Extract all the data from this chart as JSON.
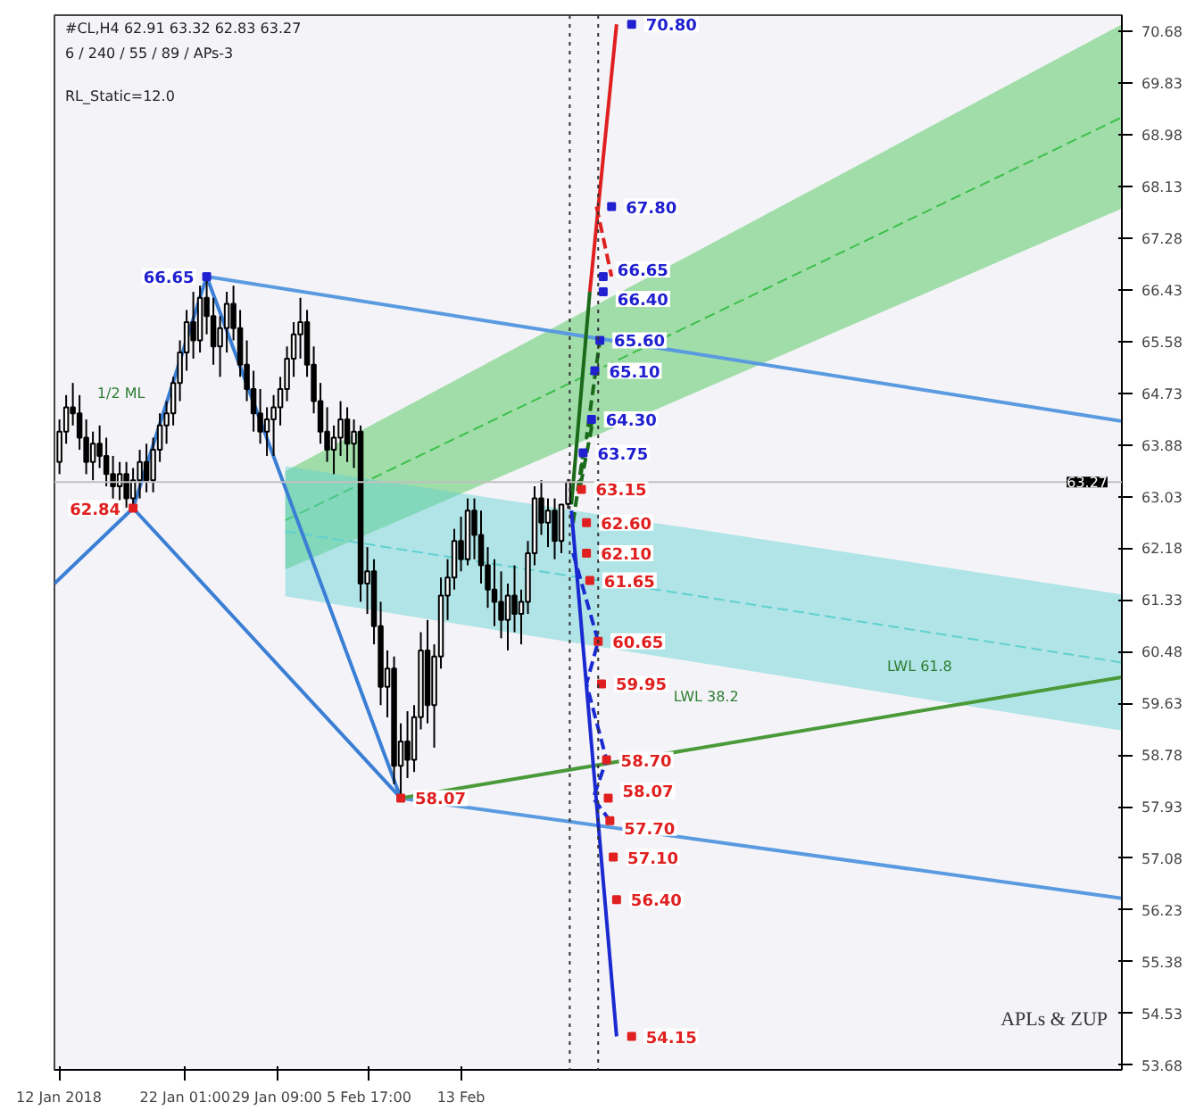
{
  "chart_data": {
    "type": "candlestick",
    "x": [
      "2018-01-12T01:00",
      "2018-01-12T13:48",
      "2018-01-13T02:36",
      "2018-01-13T15:24",
      "2018-01-14T04:12",
      "2018-01-14T17:00",
      "2018-01-15T05:48",
      "2018-01-15T18:36",
      "2018-01-16T07:24",
      "2018-01-16T20:12",
      "2018-01-17T09:00",
      "2018-01-17T21:48",
      "2018-01-18T10:36",
      "2018-01-18T23:24",
      "2018-01-19T12:12",
      "2018-01-20T01:00",
      "2018-01-20T13:48",
      "2018-01-21T02:36",
      "2018-01-21T15:24",
      "2018-01-22T04:12",
      "2018-01-22T17:00",
      "2018-01-23T05:48",
      "2018-01-23T18:36",
      "2018-01-24T07:24",
      "2018-01-24T20:12",
      "2018-01-25T09:00",
      "2018-01-25T21:48",
      "2018-01-26T10:36",
      "2018-01-26T23:24",
      "2018-01-27T12:12",
      "2018-01-28T01:00",
      "2018-01-28T13:48",
      "2018-01-29T02:36",
      "2018-01-29T15:24",
      "2018-01-30T04:12",
      "2018-01-30T17:00",
      "2018-01-31T05:48",
      "2018-01-31T18:36",
      "2018-02-01T07:24",
      "2018-02-01T20:12",
      "2018-02-02T09:00",
      "2018-02-02T21:48",
      "2018-02-03T10:36",
      "2018-02-03T23:24",
      "2018-02-04T12:12",
      "2018-02-05T01:00",
      "2018-02-05T13:48",
      "2018-02-06T02:36",
      "2018-02-06T15:24",
      "2018-02-07T04:12",
      "2018-02-07T17:00",
      "2018-02-08T05:48",
      "2018-02-08T18:36",
      "2018-02-09T07:24",
      "2018-02-09T20:12",
      "2018-02-10T09:00",
      "2018-02-10T21:48",
      "2018-02-11T10:36",
      "2018-02-11T23:24",
      "2018-02-12T12:12",
      "2018-02-13T01:00",
      "2018-02-13T13:48",
      "2018-02-14T02:36",
      "2018-02-14T15:24",
      "2018-02-15T04:12",
      "2018-02-15T17:00",
      "2018-02-16T05:48",
      "2018-02-16T18:36",
      "2018-02-17T07:24",
      "2018-02-17T20:12",
      "2018-02-18T09:00",
      "2018-02-18T21:48",
      "2018-02-19T10:36",
      "2018-02-19T23:24",
      "2018-02-20T12:12",
      "2018-02-21T01:00",
      "2018-02-21T13:48"
    ],
    "ohlc": [
      [
        63.6,
        64.3,
        63.4,
        64.1
      ],
      [
        64.1,
        64.7,
        63.9,
        64.5
      ],
      [
        64.5,
        64.9,
        64.2,
        64.4
      ],
      [
        64.4,
        64.7,
        63.8,
        64.0
      ],
      [
        64.0,
        64.3,
        63.4,
        63.6
      ],
      [
        63.6,
        64.1,
        63.3,
        63.9
      ],
      [
        63.9,
        64.2,
        63.5,
        63.7
      ],
      [
        63.7,
        64.0,
        63.2,
        63.4
      ],
      [
        63.4,
        63.7,
        63.0,
        63.2
      ],
      [
        63.2,
        63.6,
        62.9,
        63.4
      ],
      [
        63.4,
        63.6,
        62.85,
        63.0
      ],
      [
        63.0,
        63.5,
        62.84,
        63.3
      ],
      [
        63.3,
        63.8,
        63.0,
        63.6
      ],
      [
        63.6,
        63.9,
        63.1,
        63.3
      ],
      [
        63.3,
        64.0,
        63.1,
        63.8
      ],
      [
        63.8,
        64.4,
        63.6,
        64.2
      ],
      [
        64.2,
        64.6,
        63.9,
        64.4
      ],
      [
        64.4,
        65.0,
        64.2,
        64.9
      ],
      [
        64.9,
        65.6,
        64.6,
        65.4
      ],
      [
        65.4,
        66.1,
        65.1,
        65.9
      ],
      [
        65.9,
        66.4,
        65.3,
        65.6
      ],
      [
        65.6,
        66.5,
        65.4,
        66.3
      ],
      [
        66.3,
        66.65,
        65.7,
        66.0
      ],
      [
        66.0,
        66.3,
        65.2,
        65.5
      ],
      [
        65.5,
        66.0,
        65.0,
        65.8
      ],
      [
        65.8,
        66.4,
        65.4,
        66.2
      ],
      [
        66.2,
        66.5,
        65.6,
        65.8
      ],
      [
        65.8,
        66.1,
        65.0,
        65.2
      ],
      [
        65.2,
        65.6,
        64.6,
        64.8
      ],
      [
        64.8,
        65.1,
        64.1,
        64.4
      ],
      [
        64.4,
        64.8,
        63.9,
        64.1
      ],
      [
        64.1,
        64.5,
        63.7,
        64.3
      ],
      [
        64.3,
        64.7,
        63.7,
        64.5
      ],
      [
        64.5,
        65.0,
        64.2,
        64.8
      ],
      [
        64.8,
        65.5,
        64.6,
        65.3
      ],
      [
        65.3,
        65.9,
        65.0,
        65.7
      ],
      [
        65.7,
        66.3,
        65.3,
        65.9
      ],
      [
        65.9,
        66.1,
        65.0,
        65.2
      ],
      [
        65.2,
        65.5,
        64.4,
        64.6
      ],
      [
        64.6,
        64.9,
        63.9,
        64.1
      ],
      [
        64.1,
        64.5,
        63.6,
        63.8
      ],
      [
        63.8,
        64.2,
        63.4,
        64.0
      ],
      [
        64.0,
        64.6,
        63.7,
        64.3
      ],
      [
        64.3,
        64.5,
        63.6,
        63.9
      ],
      [
        63.9,
        64.3,
        63.5,
        64.1
      ],
      [
        64.1,
        64.2,
        61.3,
        61.6
      ],
      [
        61.6,
        62.2,
        61.1,
        61.8
      ],
      [
        61.8,
        62.0,
        60.6,
        60.9
      ],
      [
        60.9,
        61.3,
        59.6,
        59.9
      ],
      [
        59.9,
        60.5,
        59.4,
        60.2
      ],
      [
        60.2,
        60.4,
        58.3,
        58.6
      ],
      [
        58.6,
        59.3,
        58.07,
        59.0
      ],
      [
        59.0,
        59.5,
        58.4,
        58.7
      ],
      [
        58.7,
        59.6,
        58.5,
        59.4
      ],
      [
        59.4,
        60.8,
        59.2,
        60.5
      ],
      [
        60.5,
        61.0,
        59.3,
        59.6
      ],
      [
        59.6,
        60.6,
        58.9,
        60.4
      ],
      [
        60.4,
        61.7,
        60.2,
        61.4
      ],
      [
        61.4,
        62.0,
        61.0,
        61.7
      ],
      [
        61.7,
        62.5,
        61.5,
        62.3
      ],
      [
        62.3,
        62.7,
        61.8,
        62.0
      ],
      [
        62.0,
        63.0,
        61.9,
        62.8
      ],
      [
        62.8,
        63.0,
        62.0,
        62.4
      ],
      [
        62.4,
        62.8,
        61.6,
        61.9
      ],
      [
        61.9,
        62.2,
        61.2,
        61.5
      ],
      [
        61.5,
        62.0,
        60.9,
        61.3
      ],
      [
        61.3,
        61.8,
        60.7,
        61.0
      ],
      [
        61.0,
        61.6,
        60.5,
        61.4
      ],
      [
        61.4,
        61.9,
        60.8,
        61.1
      ],
      [
        61.1,
        61.5,
        60.6,
        61.3
      ],
      [
        61.3,
        62.3,
        61.1,
        62.1
      ],
      [
        62.1,
        63.2,
        61.9,
        63.0
      ],
      [
        63.0,
        63.3,
        62.4,
        62.6
      ],
      [
        62.6,
        63.0,
        62.2,
        62.8
      ],
      [
        62.8,
        63.0,
        62.0,
        62.3
      ],
      [
        62.3,
        62.9,
        62.1,
        62.9
      ],
      [
        62.91,
        63.32,
        62.83,
        63.27
      ]
    ],
    "color": "#000000",
    "series": [
      {
        "type": "line",
        "line_style": "dashed",
        "color": "#3cc04a",
        "x": [
          "2018-01-30T01:00",
          "2018-04-06T17:00"
        ],
        "values": [
          62.64,
          69.27
        ],
        "lower": [
          61.83,
          67.77
        ],
        "upper": [
          63.45,
          70.8
        ]
      },
      {
        "type": "line",
        "line_style": "dashed",
        "color": "#5fd0d0",
        "x": [
          "2018-01-30T01:00",
          "2018-04-06T17:00"
        ],
        "values": [
          62.46,
          60.3
        ],
        "lower": [
          61.39,
          59.18
        ],
        "upper": [
          63.53,
          61.42
        ]
      },
      {
        "type": "line",
        "color": "#3a7fd5",
        "x": [
          "2018-01-11T15:24",
          "2018-01-17T21:48",
          "2018-01-23T18:36",
          "2018-02-08T05:48"
        ],
        "values": [
          61.6,
          62.84,
          66.65,
          58.07
        ]
      },
      {
        "type": "line",
        "color": "#3a7fd5",
        "x": [
          "2018-01-17T21:48",
          "2018-02-08T05:48"
        ],
        "values": [
          62.84,
          58.07
        ]
      },
      {
        "type": "line",
        "color": "#5a9ae0",
        "x": [
          "2018-01-23T18:36",
          "2018-04-06T17:00"
        ],
        "values": [
          66.65,
          64.27
        ]
      },
      {
        "type": "line",
        "color": "#5a9ae0",
        "x": [
          "2018-02-08T05:48",
          "2018-04-06T17:00"
        ],
        "values": [
          58.07,
          56.42
        ]
      },
      {
        "type": "line",
        "color": "#4a9a3a",
        "x": [
          "2018-02-08T05:48",
          "2018-04-06T17:00"
        ],
        "values": [
          58.07,
          60.06
        ]
      },
      {
        "type": "line",
        "color": "#e02020",
        "x": [
          "2018-02-23T07:24",
          "2018-02-25T10:36"
        ],
        "values": [
          66.4,
          70.8
        ]
      },
      {
        "type": "line",
        "color": "#e02020",
        "line_style": "dashed",
        "x": [
          "2018-02-23T20:12",
          "2018-02-25T01:00"
        ],
        "values": [
          67.8,
          66.65
        ]
      },
      {
        "type": "line",
        "color": "#1a6a1a",
        "x": [
          "2018-02-21T20:12",
          "2018-02-23T07:24"
        ],
        "values": [
          62.9,
          66.4
        ]
      },
      {
        "type": "line",
        "color": "#1a6a1a",
        "line_style": "dashed",
        "x": [
          "2018-02-21T23:24",
          "2018-02-22T18:36",
          "2018-02-22T12:12",
          "2018-02-23T13:48",
          "2018-02-23T01:00",
          "2018-02-24T02:36"
        ],
        "values": [
          62.6,
          63.75,
          63.15,
          64.3,
          64.0,
          65.6
        ]
      },
      {
        "type": "line",
        "color": "#1a2ad0",
        "x": [
          "2018-02-21T20:12",
          "2018-02-25T10:36"
        ],
        "values": [
          62.8,
          54.15
        ]
      },
      {
        "type": "line",
        "color": "#1a2ad0",
        "line_style": "dashed",
        "x": [
          "2018-02-21T23:24",
          "2018-02-23T23:24",
          "2018-02-23T01:00",
          "2018-02-24T15:24",
          "2018-02-23T13:48",
          "2018-02-24T21:48"
        ],
        "values": [
          62.1,
          60.65,
          59.95,
          58.7,
          58.07,
          57.7
        ]
      },
      {
        "type": "scatter",
        "color": "#2020d0",
        "x": [
          "2018-02-26T15:24",
          "2018-02-25T01:00",
          "2018-02-24T09:00",
          "2018-02-24T09:00",
          "2018-02-24T02:36",
          "2018-02-23T17:00",
          "2018-02-23T10:36",
          "2018-02-22T18:36",
          "2018-01-23T18:36"
        ],
        "values": [
          70.8,
          67.8,
          66.65,
          66.4,
          65.6,
          65.1,
          64.3,
          63.75,
          66.65
        ],
        "value_labels": [
          "70.80",
          "67.80",
          "66.65",
          "66.40",
          "65.60",
          "65.10",
          "64.30",
          "63.75",
          "66.65"
        ]
      },
      {
        "type": "scatter",
        "color": "#e02020",
        "x": [
          "2018-02-22T15:24",
          "2018-02-23T01:00",
          "2018-02-23T01:00",
          "2018-02-23T07:24",
          "2018-02-23T23:24",
          "2018-02-24T05:48",
          "2018-02-24T15:24",
          "2018-02-24T18:36",
          "2018-02-24T21:48",
          "2018-02-25T04:12",
          "2018-02-25T10:36",
          "2018-02-26T15:24",
          "2018-01-17T21:48",
          "2018-02-08T05:48"
        ],
        "values": [
          63.15,
          62.6,
          62.1,
          61.65,
          60.65,
          59.95,
          58.7,
          58.07,
          57.7,
          57.1,
          56.4,
          54.15,
          62.84,
          58.07
        ],
        "value_labels": [
          "63.15",
          "62.60",
          "62.10",
          "61.65",
          "60.65",
          "59.95",
          "58.70",
          "58.07",
          "57.70",
          "57.10",
          "56.40",
          "54.15",
          "62.84",
          "58.07"
        ]
      }
    ],
    "xlim": [
      "2018-01-11T15:24",
      "2018-04-06T17:00"
    ],
    "xticks": [
      {
        "value": "2018-01-12",
        "label": "12 Jan 2018"
      },
      {
        "value": "2018-01-22T01:00",
        "label": "22 Jan 01:00"
      },
      {
        "value": "2018-01-29T09:00",
        "label": "29 Jan 09:00"
      },
      {
        "value": "2018-02-05T17:00",
        "label": "5 Feb 17:00"
      },
      {
        "value": "2018-02-13T01:00",
        "label": "13 Feb"
      }
    ],
    "ylim": [
      53.6,
      70.95
    ],
    "yticks": [
      53.68,
      54.53,
      55.38,
      56.23,
      57.08,
      57.93,
      58.78,
      59.63,
      60.48,
      61.33,
      62.18,
      63.03,
      63.88,
      64.73,
      65.58,
      66.43,
      67.28,
      68.13,
      68.98,
      69.83,
      70.68
    ],
    "ref_lines": [
      {
        "axis": "x",
        "value": "2018-02-21T17:00",
        "color": "#333333",
        "line_style": "dotted"
      },
      {
        "axis": "x",
        "value": "2018-02-23T23:24",
        "color": "#333333",
        "line_style": "dotted"
      },
      {
        "axis": "y",
        "value": 63.27,
        "label": "63.27",
        "color": "#c0c0c0"
      }
    ],
    "annotations": [
      "#CL,H4  62.91 63.32 62.83 63.27",
      "6 / 240 / 55 / 89 / APs-3",
      "RL_Static=12.0",
      "1/2 ML",
      "LWL 38.2",
      "LWL 61.8",
      "APLs & ZUP"
    ],
    "grid": false
  }
}
